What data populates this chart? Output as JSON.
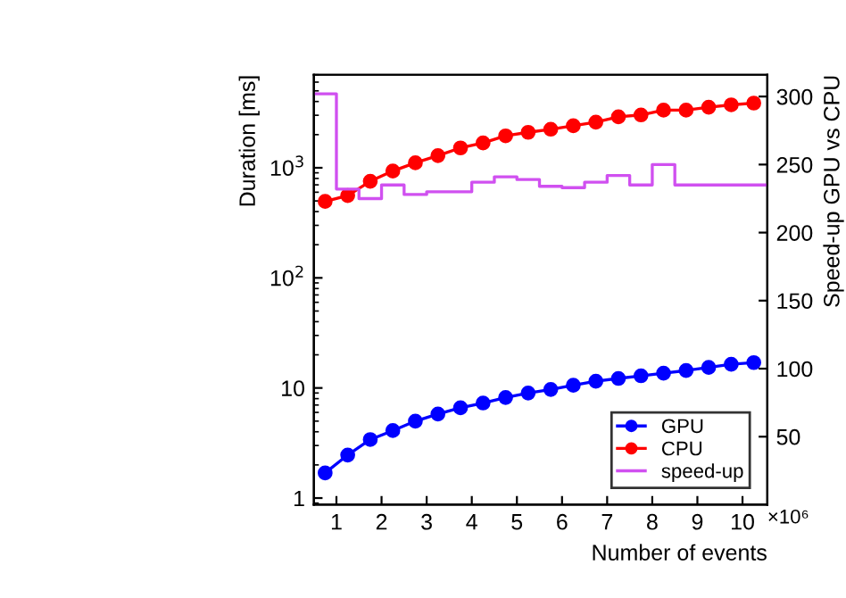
{
  "chart_data": {
    "type": "line",
    "xlabel": "Number of events",
    "ylabel": "Duration [ms]",
    "y2label": "Speed-up GPU vs CPU",
    "annotations": [
      "×10⁶"
    ],
    "log": "y",
    "legend": "bottom right",
    "marker": "circle",
    "grid": false,
    "xlim": [
      0.5,
      10.55
    ],
    "xticks": [
      1,
      2,
      3,
      4,
      5,
      6,
      7,
      8,
      9,
      10
    ],
    "ylim": [
      0.87,
      7000
    ],
    "yticks": [
      1,
      10,
      {
        "value": 100,
        "label": "10$^{2}$"
      },
      {
        "value": 1000,
        "label": "10$^{3}$"
      }
    ],
    "y2lim": [
      0,
      316
    ],
    "y2ticks": [
      50,
      100,
      150,
      200,
      250,
      300
    ],
    "series": [
      {
        "name": "GPU",
        "color": "#0000ff",
        "x": [
          0.75,
          1.25,
          1.75,
          2.25,
          2.75,
          3.25,
          3.75,
          4.25,
          4.75,
          5.25,
          5.75,
          6.25,
          6.75,
          7.25,
          7.75,
          8.25,
          8.75,
          9.25,
          9.75,
          10.25
        ],
        "values": [
          1.69,
          2.46,
          3.4,
          4.1,
          5.0,
          5.8,
          6.6,
          7.3,
          8.2,
          9.0,
          9.7,
          10.6,
          11.5,
          12.2,
          12.9,
          13.6,
          14.4,
          15.4,
          16.4,
          17.0
        ]
      },
      {
        "name": "CPU",
        "color": "#ff0000",
        "x": [
          0.75,
          1.25,
          1.75,
          2.25,
          2.75,
          3.25,
          3.75,
          4.25,
          4.75,
          5.25,
          5.75,
          6.25,
          6.75,
          7.25,
          7.75,
          8.25,
          8.75,
          9.25,
          9.75,
          10.25
        ],
        "values": [
          495,
          560,
          755,
          935,
          1110,
          1290,
          1515,
          1680,
          1950,
          2100,
          2240,
          2410,
          2600,
          2900,
          3020,
          3340,
          3340,
          3550,
          3730,
          3870
        ]
      },
      {
        "name": "speed-up",
        "type": "step",
        "axis": "y2",
        "color": "#d050f0",
        "marker": "none",
        "x": [
          0.5,
          1.0,
          1.5,
          2.0,
          2.5,
          3.0,
          3.5,
          4.0,
          4.5,
          5.0,
          5.5,
          6.0,
          6.5,
          7.0,
          7.5,
          8.0,
          8.5,
          9.0,
          9.5,
          10.0,
          10.5
        ],
        "values": [
          302,
          232,
          225,
          235,
          228,
          230,
          230,
          237,
          241,
          239,
          234,
          233,
          237,
          242,
          235,
          250,
          235,
          235,
          235,
          235,
          235
        ]
      }
    ]
  }
}
